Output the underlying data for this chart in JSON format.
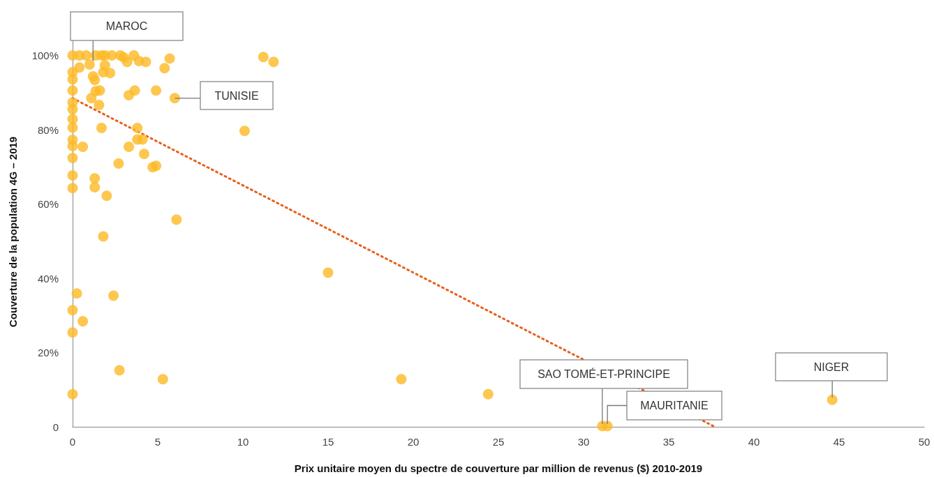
{
  "chart_data": {
    "type": "scatter",
    "xlabel": "Prix unitaire moyen du spectre de couverture par million de revenus ($) 2010-2019",
    "ylabel": "Couverture de la population 4G – 2019",
    "xlim": [
      0,
      50
    ],
    "xticks": [
      0,
      5,
      10,
      15,
      20,
      25,
      30,
      35,
      40,
      45,
      50
    ],
    "ylim": [
      0,
      105
    ],
    "yticks": [
      0,
      {
        "value": 20,
        "label": "20%"
      },
      {
        "value": 40,
        "label": "40%"
      },
      {
        "value": 60,
        "label": "60%"
      },
      {
        "value": 80,
        "label": "80%"
      },
      {
        "value": 100,
        "label": "100%"
      }
    ],
    "grid": false,
    "marker": "circle",
    "series": [
      {
        "type": "scatter",
        "color": "#fdb924",
        "x": [
          0,
          0.4,
          0.8,
          1.35,
          1.7,
          1.9,
          2.3,
          2.8,
          3.0,
          3.6,
          3.9,
          4.3,
          5.7,
          5.4,
          3.2,
          0.4,
          1.0,
          1.9,
          1.8,
          2.2,
          0,
          1.2,
          1.3,
          0,
          0,
          1.35,
          1.6,
          3.65,
          3.3,
          4.9,
          6.0,
          1.1,
          0,
          0,
          1.55,
          0,
          0,
          1.7,
          3.8,
          0,
          0,
          0.6,
          3.3,
          3.8,
          4.1,
          4.2,
          0,
          2.7,
          4.7,
          4.9,
          0,
          1.3,
          1.3,
          0,
          2.0,
          6.1,
          1.8,
          10.1,
          11.2,
          11.8,
          15.0,
          0.25,
          2.4,
          0,
          0.6,
          0,
          2.75,
          5.3,
          0,
          19.3,
          24.4,
          31.1,
          31.4,
          44.6
        ],
        "values": [
          100,
          100,
          100,
          100,
          100,
          100,
          100,
          100,
          99.5,
          100,
          98.5,
          98.3,
          99.2,
          96.6,
          98.3,
          96.8,
          97.6,
          97.4,
          95.5,
          95.3,
          95.5,
          94.4,
          93.4,
          93.6,
          90.6,
          90.4,
          90.6,
          90.6,
          89.3,
          90.6,
          88.5,
          88.5,
          87.4,
          85.5,
          86.7,
          82.9,
          80.6,
          80.5,
          80.5,
          77.3,
          75.6,
          75.4,
          75.4,
          77.4,
          77.4,
          73.5,
          72.4,
          70.9,
          69.9,
          70.3,
          67.7,
          66.9,
          64.5,
          64.3,
          62.2,
          55.8,
          51.3,
          79.7,
          99.6,
          98.3,
          41.5,
          35.9,
          35.3,
          31.4,
          28.4,
          25.4,
          15.2,
          12.8,
          8.8,
          12.8,
          8.8,
          0.2,
          0.2,
          7.3
        ]
      },
      {
        "type": "line",
        "color": "#e8601c",
        "line_style": "dotted",
        "marker": "none",
        "x": [
          0,
          37.7
        ],
        "values": [
          88.5,
          0
        ]
      }
    ],
    "annotations": [
      {
        "text": "MAROC",
        "x": 1.2,
        "y": 98
      },
      {
        "text": "TUNISIE",
        "x": 6.0,
        "y": 88.5
      },
      {
        "text": "SAO TOMÉ-ET-PRINCIPE",
        "x": 31.1,
        "y": 0.2
      },
      {
        "text": "MAURITANIE",
        "x": 31.4,
        "y": 0.2
      },
      {
        "text": "NIGER",
        "x": 44.6,
        "y": 7.3
      }
    ]
  }
}
